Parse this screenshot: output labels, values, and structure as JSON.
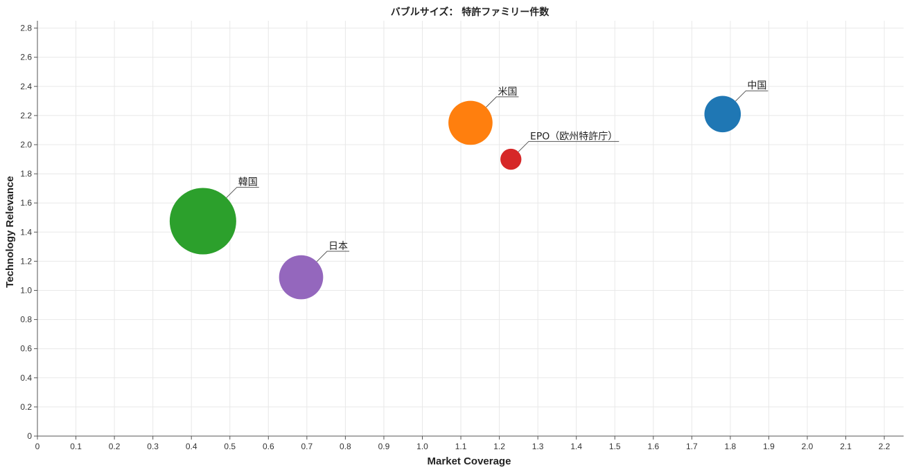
{
  "chart_data": {
    "type": "scatter",
    "title": "バブルサイズ： 特許ファミリー件数",
    "xlabel": "Market Coverage",
    "ylabel": "Technology Relevance",
    "xlim": [
      0,
      2.25
    ],
    "ylim": [
      0,
      2.85
    ],
    "xticks": [
      "0",
      "0.1",
      "0.2",
      "0.3",
      "0.4",
      "0.5",
      "0.6",
      "0.7",
      "0.8",
      "0.9",
      "1.0",
      "1.1",
      "1.2",
      "1.3",
      "1.4",
      "1.5",
      "1.6",
      "1.7",
      "1.8",
      "1.9",
      "2.0",
      "2.1",
      "2.2"
    ],
    "yticks": [
      "0",
      "0.2",
      "0.4",
      "0.6",
      "0.8",
      "1.0",
      "1.2",
      "1.4",
      "1.6",
      "1.8",
      "2.0",
      "2.2",
      "2.4",
      "2.6",
      "2.8"
    ],
    "grid": true,
    "points": [
      {
        "label": "中国",
        "x": 1.78,
        "y": 2.21,
        "size": 30,
        "color": "#1f77b4"
      },
      {
        "label": "米国",
        "x": 1.125,
        "y": 2.15,
        "size": 44,
        "color": "#ff7f0e"
      },
      {
        "label": "EPO（欧州特許庁）",
        "x": 1.23,
        "y": 1.9,
        "size": 10,
        "color": "#d62728"
      },
      {
        "label": "韓国",
        "x": 0.43,
        "y": 1.475,
        "size": 100,
        "color": "#2ca02c"
      },
      {
        "label": "日本",
        "x": 0.685,
        "y": 1.09,
        "size": 44,
        "color": "#9467bd"
      }
    ]
  }
}
